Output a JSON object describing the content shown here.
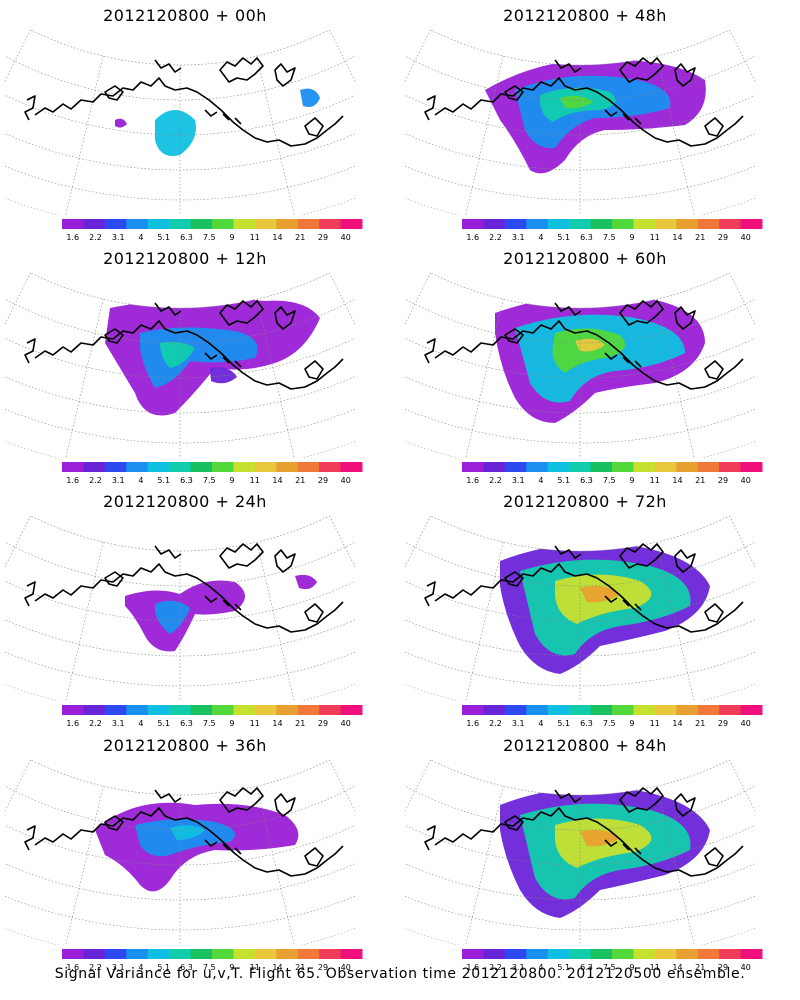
{
  "footer": "Signal Variance for u,v,T. Flight 65. Observation time 2012120800. 2012120500 ensemble.",
  "colorbar": {
    "ticks": [
      "1.6",
      "2.2",
      "3.1",
      "4",
      "5.1",
      "6.3",
      "7.5",
      "9",
      "11",
      "14",
      "21",
      "29",
      "40"
    ],
    "colors": [
      "#9a1fd6",
      "#6a24d8",
      "#2d4af0",
      "#1a8ff0",
      "#10c0e0",
      "#12ccae",
      "#18c060",
      "#52d83a",
      "#c6e030",
      "#e8c83a",
      "#e8a030",
      "#f07838",
      "#f03c5a",
      "#f0107c"
    ]
  },
  "panels": [
    {
      "title": "2012120800  + 00h",
      "level": 0
    },
    {
      "title": "2012120800  + 48h",
      "level": 4
    },
    {
      "title": "2012120800  + 12h",
      "level": 1
    },
    {
      "title": "2012120800  + 60h",
      "level": 5
    },
    {
      "title": "2012120800  + 24h",
      "level": 2
    },
    {
      "title": "2012120800  + 72h",
      "level": 6
    },
    {
      "title": "2012120800  + 36h",
      "level": 3
    },
    {
      "title": "2012120800  + 84h",
      "level": 7
    }
  ]
}
